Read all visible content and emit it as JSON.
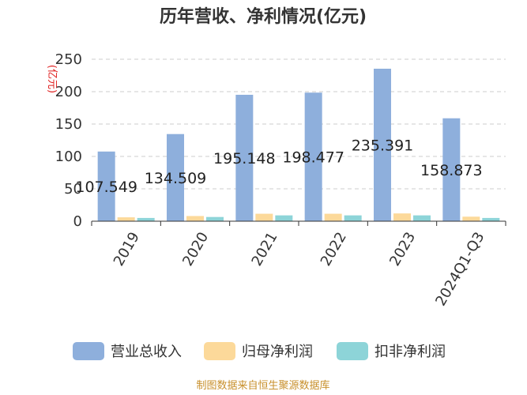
{
  "chart_data": {
    "type": "bar",
    "title": "历年营收、净利情况(亿元)",
    "unit_label": "(亿元)",
    "categories": [
      "2019",
      "2020",
      "2021",
      "2022",
      "2023",
      "2024Q1-Q3"
    ],
    "series": [
      {
        "name": "营业总收入",
        "color": "#8eafdc",
        "values": [
          107.549,
          134.509,
          195.148,
          198.477,
          235.391,
          158.873
        ],
        "labels": [
          "107.549",
          "134.509",
          "195.148",
          "198.477",
          "235.391",
          "158.873"
        ]
      },
      {
        "name": "归母净利润",
        "color": "#fcd99a",
        "values": [
          6,
          8,
          11.5,
          11.5,
          12,
          7
        ]
      },
      {
        "name": "扣非净利润",
        "color": "#8dd4d8",
        "values": [
          5,
          6.5,
          9,
          9,
          9,
          5
        ]
      }
    ],
    "yticks": [
      "0",
      "50",
      "100",
      "150",
      "200",
      "250"
    ],
    "ylim": [
      0,
      250
    ],
    "grid": true,
    "legend_position": "bottom"
  },
  "source_text": "制图数据来自恒生聚源数据库"
}
